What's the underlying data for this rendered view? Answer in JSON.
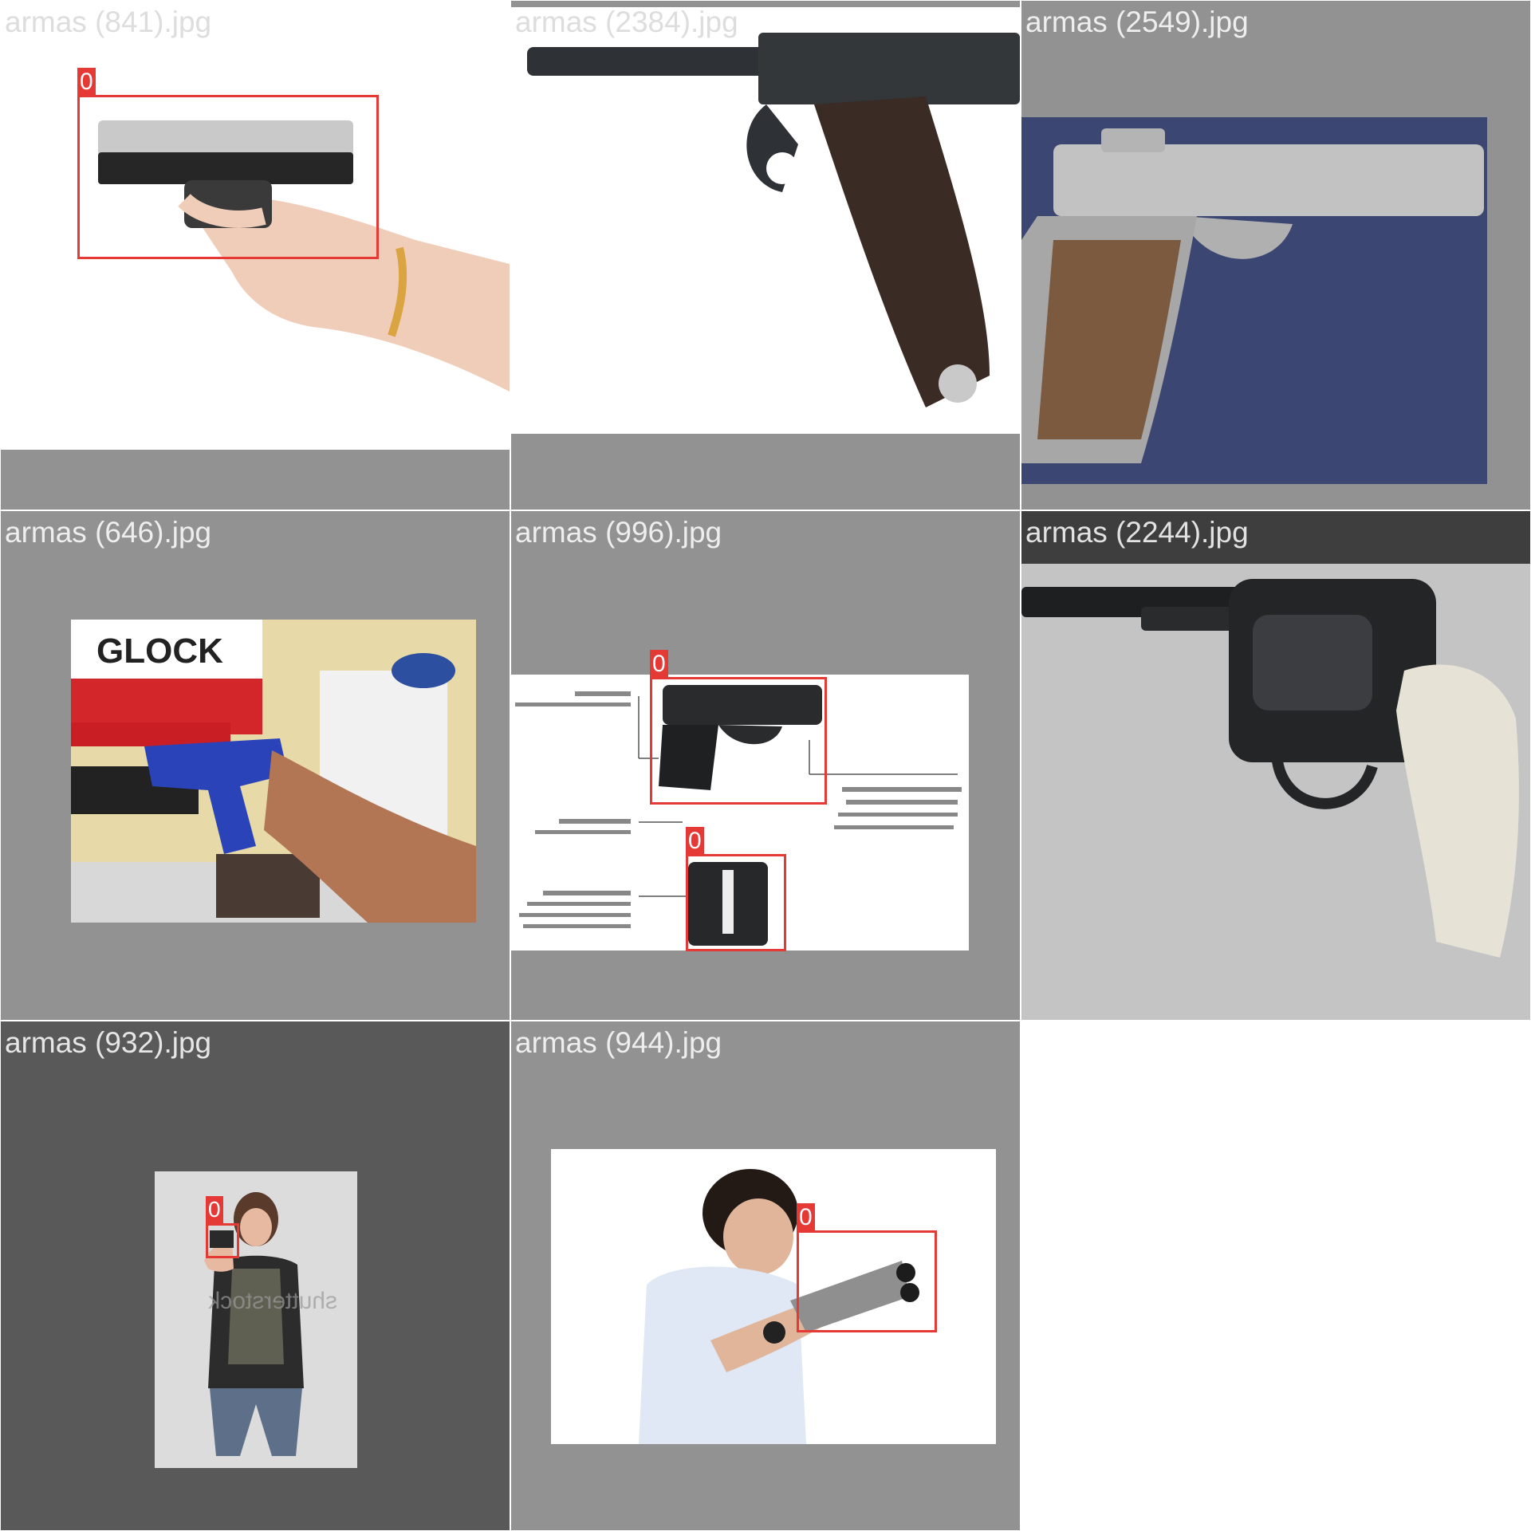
{
  "tiles": [
    {
      "filename": "armas (841).jpg",
      "detections": [
        {
          "class_label": "0"
        }
      ]
    },
    {
      "filename": "armas (2384).jpg",
      "detections": []
    },
    {
      "filename": "armas (2549).jpg",
      "detections": []
    },
    {
      "filename": "armas (646).jpg",
      "detections": []
    },
    {
      "filename": "armas (996).jpg",
      "detections": [
        {
          "class_label": "0"
        },
        {
          "class_label": "0"
        }
      ]
    },
    {
      "filename": "armas (2244).jpg",
      "detections": []
    },
    {
      "filename": "armas (932).jpg",
      "detections": [
        {
          "class_label": "0"
        }
      ]
    },
    {
      "filename": "armas (944).jpg",
      "detections": [
        {
          "class_label": "0"
        }
      ]
    }
  ],
  "colors": {
    "box": "#e53935",
    "letterbox": "#929292",
    "letterbox_dark": "#595959"
  }
}
